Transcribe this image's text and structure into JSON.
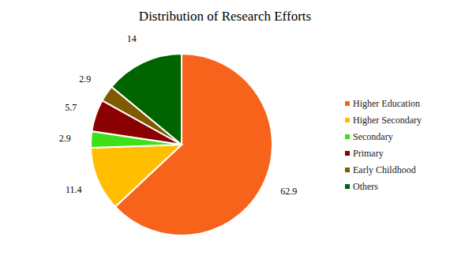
{
  "chart_data": {
    "type": "pie",
    "title": "Distribution of Research Efforts",
    "categories": [
      "Higher Education",
      "Higher Secondary",
      "Secondary",
      "Primary",
      "Early Childhood",
      "Others"
    ],
    "values": [
      62.9,
      11.4,
      2.9,
      5.7,
      2.9,
      14
    ],
    "colors": [
      "#f7631b",
      "#ffbf00",
      "#3ee01a",
      "#8b0000",
      "#7f5a00",
      "#006400"
    ],
    "data_labels": true,
    "legend": "right"
  }
}
